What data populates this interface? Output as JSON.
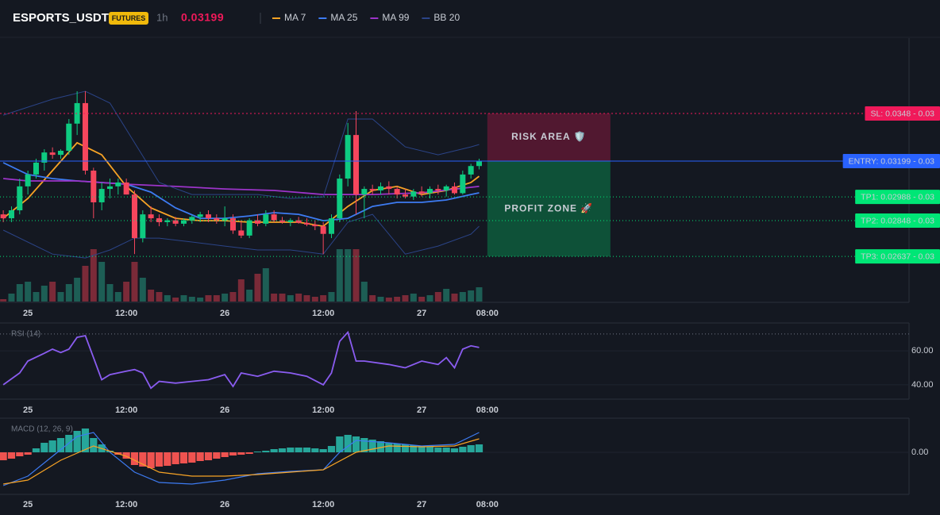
{
  "chart_data": {
    "type": "candlestick",
    "title": "ESPORTS_USDT",
    "badge": "FUTURES",
    "interval": "1h",
    "last_price": 0.03199,
    "up_color": "#0ecb81",
    "down_color": "#f6465d",
    "volume_up_color": "#1d5e55",
    "volume_down_color": "#7a2a38",
    "x": [
      -3,
      -2,
      -1,
      0,
      1,
      2,
      3,
      4,
      5,
      6,
      7,
      8,
      9,
      10,
      11,
      12,
      13,
      14,
      15,
      16,
      17,
      18,
      19,
      20,
      21,
      22,
      23,
      24,
      25,
      26,
      27,
      28,
      29,
      30,
      31,
      32,
      33,
      34,
      35,
      36,
      37,
      38,
      39,
      40,
      41,
      42,
      43,
      44,
      45,
      46,
      47,
      48,
      49,
      50,
      51,
      52,
      53,
      54,
      55
    ],
    "open": [
      0.02885,
      0.02862,
      0.02909,
      0.0305,
      0.0312,
      0.0319,
      0.0325,
      0.03236,
      0.0326,
      0.0342,
      0.03541,
      0.03143,
      0.02956,
      0.03035,
      0.0305,
      0.03073,
      0.03002,
      0.02745,
      0.02885,
      0.02862,
      0.02839,
      0.0285,
      0.0283,
      0.0285,
      0.0287,
      0.02885,
      0.02862,
      0.0285,
      0.02862,
      0.0279,
      0.0276,
      0.0285,
      0.0283,
      0.02885,
      0.0285,
      0.02839,
      0.0285,
      0.02835,
      0.02825,
      0.02815,
      0.0277,
      0.02862,
      0.03096,
      0.03353,
      0.03002,
      0.03035,
      0.03026,
      0.0305,
      0.03035,
      0.03002,
      0.0299,
      0.0302,
      0.0301,
      0.03035,
      0.03026,
      0.0305,
      0.0301,
      0.0312,
      0.0317
    ],
    "high": [
      0.02909,
      0.02932,
      0.03096,
      0.03143,
      0.03213,
      0.03269,
      0.0328,
      0.03269,
      0.03447,
      0.03611,
      0.03611,
      0.0316,
      0.03073,
      0.03096,
      0.03096,
      0.03096,
      0.03026,
      0.02909,
      0.02932,
      0.02885,
      0.02862,
      0.0287,
      0.02862,
      0.0288,
      0.029,
      0.02909,
      0.02885,
      0.02932,
      0.02885,
      0.0285,
      0.02862,
      0.02885,
      0.02909,
      0.02909,
      0.0287,
      0.02862,
      0.0287,
      0.02862,
      0.0285,
      0.02839,
      0.02885,
      0.0312,
      0.03424,
      0.03494,
      0.0305,
      0.0306,
      0.03073,
      0.0308,
      0.0305,
      0.03035,
      0.03035,
      0.0305,
      0.0305,
      0.0306,
      0.0306,
      0.03073,
      0.03143,
      0.03183,
      0.03213
    ],
    "low": [
      0.02839,
      0.02839,
      0.02885,
      0.03002,
      0.03096,
      0.03143,
      0.03213,
      0.03213,
      0.03236,
      0.03353,
      0.0312,
      0.02862,
      0.02909,
      0.02979,
      0.03002,
      0.03002,
      0.02651,
      0.0272,
      0.02839,
      0.02815,
      0.02815,
      0.02815,
      0.02815,
      0.0283,
      0.02839,
      0.02839,
      0.0283,
      0.02815,
      0.0277,
      0.02745,
      0.02745,
      0.02815,
      0.02815,
      0.02839,
      0.0283,
      0.02815,
      0.0283,
      0.02815,
      0.02792,
      0.02651,
      0.02745,
      0.02839,
      0.0305,
      0.02885,
      0.02862,
      0.03002,
      0.03002,
      0.03002,
      0.02979,
      0.02979,
      0.0297,
      0.0299,
      0.02979,
      0.03002,
      0.0299,
      0.03002,
      0.03002,
      0.03096,
      0.0315
    ],
    "close": [
      0.02862,
      0.02909,
      0.0305,
      0.0312,
      0.0319,
      0.0325,
      0.03236,
      0.0326,
      0.0342,
      0.03541,
      0.03143,
      0.02956,
      0.03035,
      0.0305,
      0.03073,
      0.03002,
      0.02745,
      0.02885,
      0.02862,
      0.02839,
      0.0285,
      0.0283,
      0.0285,
      0.0287,
      0.02885,
      0.02862,
      0.0285,
      0.02862,
      0.0279,
      0.0276,
      0.0285,
      0.0283,
      0.02885,
      0.0285,
      0.02839,
      0.0285,
      0.02835,
      0.02825,
      0.02815,
      0.0277,
      0.02862,
      0.03096,
      0.03353,
      0.03002,
      0.03035,
      0.03026,
      0.0305,
      0.03035,
      0.03002,
      0.0299,
      0.0302,
      0.0301,
      0.03035,
      0.03026,
      0.0305,
      0.0301,
      0.0312,
      0.0317,
      0.03199
    ],
    "volume": [
      3,
      10,
      22,
      25,
      12,
      20,
      25,
      12,
      22,
      30,
      45,
      66,
      50,
      22,
      12,
      25,
      50,
      30,
      15,
      12,
      8,
      5,
      8,
      6,
      5,
      8,
      8,
      10,
      12,
      28,
      15,
      35,
      42,
      10,
      10,
      8,
      10,
      8,
      6,
      8,
      12,
      66,
      66,
      66,
      25,
      8,
      6,
      5,
      6,
      8,
      10,
      6,
      8,
      12,
      16,
      10,
      12,
      14,
      18
    ],
    "volume_lim": [
      0,
      100
    ],
    "xlim": [
      -3.4,
      107.4
    ],
    "xticks": [
      {
        "value": 0,
        "label": "25"
      },
      {
        "value": 12,
        "label": "12:00"
      },
      {
        "value": 24,
        "label": "26"
      },
      {
        "value": 36,
        "label": "12:00"
      },
      {
        "value": 48,
        "label": "27"
      },
      {
        "value": 56,
        "label": "08:00"
      }
    ],
    "ylim": [
      0.02371,
      0.03915
    ],
    "series": [
      {
        "name": "MA 7",
        "color": "#f7a325",
        "x": [
          -3,
          0,
          3,
          6,
          9,
          12,
          15,
          18,
          21,
          24,
          27,
          30,
          33,
          36,
          39,
          42,
          45,
          48,
          51,
          54,
          55
        ],
        "values": [
          0.02862,
          0.02979,
          0.03143,
          0.03307,
          0.03236,
          0.0305,
          0.02923,
          0.02862,
          0.02848,
          0.02848,
          0.02839,
          0.02839,
          0.02839,
          0.02815,
          0.02932,
          0.03026,
          0.0305,
          0.03002,
          0.03026,
          0.03073,
          0.0311
        ]
      },
      {
        "name": "MA 25",
        "color": "#3d7bf2",
        "x": [
          -3,
          0,
          3,
          6,
          9,
          12,
          15,
          18,
          21,
          24,
          27,
          30,
          33,
          36,
          39,
          42,
          45,
          48,
          51,
          54,
          55
        ],
        "values": [
          0.0319,
          0.0312,
          0.03096,
          0.03082,
          0.03073,
          0.03063,
          0.03016,
          0.02923,
          0.02862,
          0.02862,
          0.02876,
          0.02895,
          0.02885,
          0.02848,
          0.02862,
          0.02932,
          0.02956,
          0.02956,
          0.0297,
          0.03002,
          0.03012
        ]
      },
      {
        "name": "MA 99",
        "color": "#9c34c9",
        "x": [
          -3,
          0,
          6,
          12,
          18,
          24,
          30,
          36,
          42,
          48,
          55
        ],
        "values": [
          0.03096,
          0.03082,
          0.03082,
          0.03063,
          0.0305,
          0.03035,
          0.03026,
          0.03002,
          0.03002,
          0.03012,
          0.0305
        ]
      },
      {
        "name": "BB 20",
        "color": "#2b4488",
        "x": [
          -3,
          3,
          7,
          10,
          13,
          16,
          20,
          24,
          28,
          32,
          36,
          39,
          42,
          46,
          50,
          54,
          55
        ],
        "values": [
          0.0347,
          0.03564,
          0.03611,
          0.03541,
          0.03307,
          0.03073,
          0.03002,
          0.03002,
          0.03002,
          0.02979,
          0.02988,
          0.03447,
          0.03447,
          0.03283,
          0.03236,
          0.03283,
          0.03297
        ],
        "lower": [
          0.02792,
          0.02651,
          0.02628,
          0.02675,
          0.02745,
          0.02745,
          0.02722,
          0.02698,
          0.02675,
          0.02675,
          0.02651,
          0.02839,
          0.02885,
          0.02651,
          0.02698,
          0.02768,
          0.02815
        ]
      }
    ],
    "levels": [
      {
        "label": "SL: 0.0348 - 0.03",
        "value": 0.0348,
        "color": "#f0195a",
        "text_color": "#ffffff",
        "style": "dashed"
      },
      {
        "label": "ENTRY: 0.03199 - 0.03",
        "value": 0.03199,
        "color": "#2962ff",
        "text_color": "#ffffff",
        "style": "solid"
      },
      {
        "label": "TP1: 0.02988 - 0.03",
        "value": 0.02988,
        "color": "#00e676",
        "text_color": "#0b1a12",
        "style": "dotted"
      },
      {
        "label": "TP2: 0.02848 - 0.03",
        "value": 0.02848,
        "color": "#00e676",
        "text_color": "#0b1a12",
        "style": "dotted"
      },
      {
        "label": "TP3: 0.02637 - 0.03",
        "value": 0.02637,
        "color": "#00e676",
        "text_color": "#0b1a12",
        "style": "dotted"
      }
    ],
    "zones": [
      {
        "label": "RISK AREA 🛡️",
        "from": 0.0348,
        "to": 0.03199,
        "x": [
          56,
          71
        ],
        "color": "#f0195a"
      },
      {
        "label": "PROFIT ZONE 🚀",
        "from": 0.03199,
        "to": 0.02637,
        "x": [
          56,
          71
        ],
        "color": "#00e676"
      }
    ],
    "rsi": {
      "label": "RSI (14)",
      "color": "#8a5cf0",
      "level": 70,
      "ylim": [
        32,
        76
      ],
      "yticks": [
        {
          "value": 40,
          "label": "40.00"
        },
        {
          "value": 60,
          "label": "60.00"
        }
      ],
      "x": [
        -3,
        -1,
        0,
        2,
        3,
        4,
        5,
        6,
        7,
        8,
        9,
        10,
        12,
        13,
        14,
        15,
        16,
        18,
        20,
        22,
        24,
        25,
        26,
        28,
        30,
        32,
        34,
        36,
        37,
        38,
        39,
        40,
        41,
        44,
        46,
        48,
        50,
        51,
        52,
        53,
        54,
        55
      ],
      "values": [
        40,
        47,
        54,
        58.6,
        61,
        59,
        61,
        68,
        69,
        56,
        43,
        46,
        48,
        49,
        47,
        38,
        42,
        41,
        42,
        43,
        46,
        39,
        47,
        45,
        48,
        47,
        45,
        40,
        47,
        65.6,
        71,
        54,
        54,
        52,
        50,
        54,
        52,
        56,
        50,
        61,
        63,
        62
      ]
    },
    "macd": {
      "label": "MACD (12, 26, 9)",
      "ylim": [
        -0.00052,
        0.0004
      ],
      "yticks": [
        {
          "value": 0,
          "label": "0.00"
        }
      ],
      "up_color": "#26a69a",
      "down_color": "#ef5350",
      "histogram": [
        -0.0001,
        -8e-05,
        -5e-05,
        -3e-05,
        5e-05,
        0.00012,
        0.00015,
        0.00018,
        0.00022,
        0.00027,
        0.0003,
        0.00018,
        0.0001,
        2e-05,
        -3e-05,
        -8e-05,
        -0.00016,
        -0.00018,
        -0.0002,
        -0.00018,
        -0.00017,
        -0.00015,
        -0.00014,
        -0.00013,
        -0.00011,
        -0.0001,
        -8e-05,
        -6e-05,
        -4e-05,
        -3e-05,
        -2e-05,
        1e-05,
        2e-05,
        4e-05,
        5e-05,
        6e-05,
        6e-05,
        6e-05,
        5e-05,
        4e-05,
        8e-05,
        0.0002,
        0.00022,
        0.0002,
        0.00018,
        0.00016,
        0.00014,
        0.00012,
        0.00011,
        0.0001,
        9e-05,
        8e-05,
        7e-05,
        6e-05,
        6e-05,
        5e-05,
        7e-05,
        9e-05,
        0.0001
      ],
      "lines": [
        {
          "color": "#3d7bf2",
          "x": [
            -3,
            0,
            3,
            6,
            8,
            10,
            13,
            16,
            20,
            24,
            28,
            32,
            36,
            38,
            40,
            44,
            48,
            52,
            55
          ],
          "values": [
            -0.00042,
            -0.0003,
            -5e-05,
            0.0002,
            0.00025,
            0,
            -0.00025,
            -0.00038,
            -0.0004,
            -0.00035,
            -0.00027,
            -0.00024,
            -0.00022,
            0,
            0.00015,
            0.00012,
            8e-05,
            0.0001,
            0.00025
          ]
        },
        {
          "color": "#f7a325",
          "x": [
            -3,
            0,
            4,
            8,
            12,
            16,
            20,
            24,
            28,
            32,
            36,
            40,
            44,
            48,
            52,
            55
          ],
          "values": [
            -0.0004,
            -0.00035,
            -0.0001,
            8e-05,
            -5e-05,
            -0.00025,
            -0.0003,
            -0.0003,
            -0.00028,
            -0.00025,
            -0.00022,
            0,
            8e-05,
            7e-05,
            8e-05,
            0.00017
          ]
        }
      ]
    }
  }
}
